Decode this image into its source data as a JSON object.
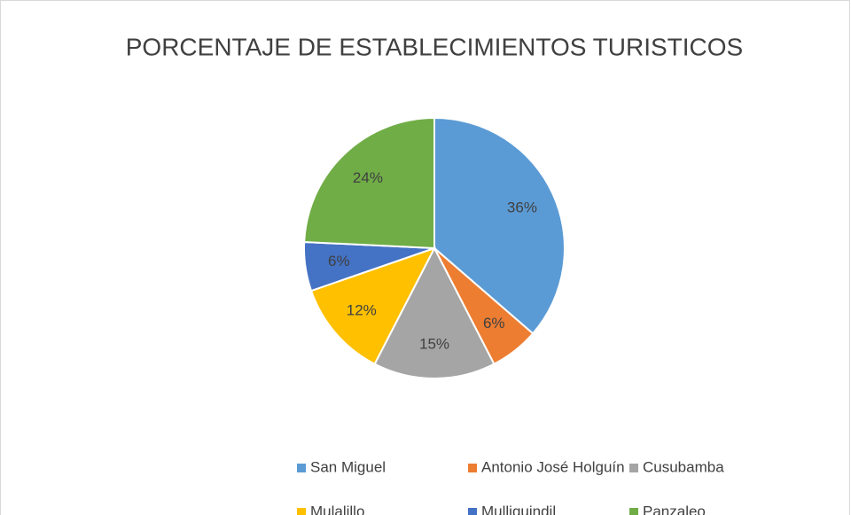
{
  "chart_data": {
    "type": "pie",
    "title": "PORCENTAJE DE ESTABLECIMIENTOS TURISTICOS",
    "categories": [
      "San Miguel",
      "Antonio José Holguín",
      "Cusubamba",
      "Mulalillo",
      "Mulliquindil",
      "Panzaleo"
    ],
    "values": [
      36,
      6,
      15,
      12,
      6,
      24
    ],
    "value_labels": [
      "36%",
      "6%",
      "15%",
      "12%",
      "6%",
      "24%"
    ],
    "colors": [
      "#5b9bd5",
      "#ed7d31",
      "#a5a5a5",
      "#ffc000",
      "#4472c4",
      "#70ad47"
    ],
    "legend": "bottom"
  }
}
